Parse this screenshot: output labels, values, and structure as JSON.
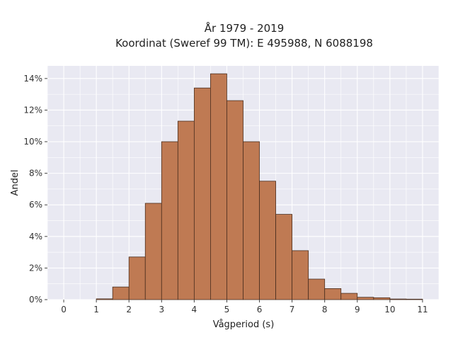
{
  "chart_data": {
    "type": "bar",
    "title_lines": [
      "År 1979 - 2019",
      "Koordinat (Sweref 99 TM): E 495988, N 6088198"
    ],
    "xlabel": "Vågperiod (s)",
    "ylabel": "Andel",
    "xlim": [
      -0.5,
      11.5
    ],
    "ylim": [
      0,
      14.8
    ],
    "x_ticks": [
      0,
      1,
      2,
      3,
      4,
      5,
      6,
      7,
      8,
      9,
      10,
      11
    ],
    "y_ticks": [
      0,
      2,
      4,
      6,
      8,
      10,
      12,
      14
    ],
    "y_tick_labels": [
      "0%",
      "2%",
      "4%",
      "6%",
      "8%",
      "10%",
      "12%",
      "14%"
    ],
    "bin_width": 0.5,
    "bin_starts": [
      1.0,
      1.5,
      2.0,
      2.5,
      3.0,
      3.5,
      4.0,
      4.5,
      5.0,
      5.5,
      6.0,
      6.5,
      7.0,
      7.5,
      8.0,
      8.5,
      9.0,
      9.5,
      10.0,
      10.5
    ],
    "values": [
      0.05,
      0.8,
      2.7,
      6.1,
      10.0,
      11.3,
      13.4,
      14.3,
      12.6,
      10.0,
      7.5,
      5.4,
      3.1,
      1.3,
      0.7,
      0.4,
      0.15,
      0.12,
      0.04,
      0.03
    ],
    "grid": true,
    "colors": {
      "bar_fill": "#bf7a53",
      "bar_stroke": "#4a2e1f",
      "plot_bg": "#e9e9f2",
      "grid": "#ffffff"
    }
  }
}
